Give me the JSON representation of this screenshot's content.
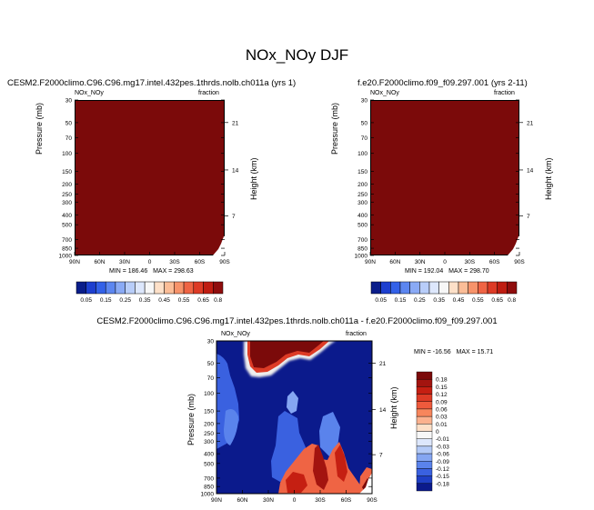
{
  "figure": {
    "title": "NOx_NOy DJF",
    "variable_label": "NOx_NOy",
    "units_label": "fraction",
    "ylabel_left": "Pressure (mb)",
    "ylabel_right": "Height (km)"
  },
  "colors": {
    "field_top": "#7b0a0a"
  },
  "chart_data": [
    {
      "type": "heatmap",
      "title": "CESM2.F2000climo.C96.C96.mg17.intel.432pes.1thrds.nolb.ch011a (yrs 1)",
      "variable": "NOx_NOy",
      "units": "fraction",
      "xlabel": "",
      "ylabel": "Pressure (mb)",
      "ylabel_right": "Height (km)",
      "x_ticks": [
        "90N",
        "60N",
        "30N",
        "0",
        "30S",
        "60S",
        "90S"
      ],
      "y_ticks": [
        "30",
        "50",
        "70",
        "100",
        "150",
        "200",
        "250",
        "300",
        "400",
        "500",
        "700",
        "850",
        "1000"
      ],
      "y_right_ticks": [
        "21",
        "14",
        "7"
      ],
      "min_label": "MIN = 186.46",
      "max_label": "MAX = 298.63",
      "min": 186.46,
      "max": 298.63,
      "colorbar_levels": [
        "0.05",
        "0.15",
        "0.25",
        "0.35",
        "0.45",
        "0.55",
        "0.65",
        "0.8"
      ],
      "colorbar_colors": [
        "#0a1d8a",
        "#1d3fcf",
        "#3361e8",
        "#5c86f0",
        "#8aaaf5",
        "#b8cdf9",
        "#dde7fc",
        "#f7f7f7",
        "#fde0c8",
        "#fbbd97",
        "#f7936a",
        "#ef6444",
        "#dd3b26",
        "#bf1d12",
        "#8f0d0d"
      ]
    },
    {
      "type": "heatmap",
      "title": "f.e20.F2000climo.f09_f09.297.001 (yrs 2-11)",
      "variable": "NOx_NOy",
      "units": "fraction",
      "xlabel": "",
      "ylabel": "Pressure (mb)",
      "ylabel_right": "Height (km)",
      "x_ticks": [
        "90N",
        "60N",
        "30N",
        "0",
        "30S",
        "60S",
        "90S"
      ],
      "y_ticks": [
        "30",
        "50",
        "70",
        "100",
        "150",
        "200",
        "250",
        "300",
        "400",
        "500",
        "700",
        "850",
        "1000"
      ],
      "y_right_ticks": [
        "21",
        "14",
        "7"
      ],
      "min_label": "MIN = 192.04",
      "max_label": "MAX = 298.70",
      "min": 192.04,
      "max": 298.7,
      "colorbar_levels": [
        "0.05",
        "0.15",
        "0.25",
        "0.35",
        "0.45",
        "0.55",
        "0.65",
        "0.8"
      ],
      "colorbar_colors": [
        "#0a1d8a",
        "#1d3fcf",
        "#3361e8",
        "#5c86f0",
        "#8aaaf5",
        "#b8cdf9",
        "#dde7fc",
        "#f7f7f7",
        "#fde0c8",
        "#fbbd97",
        "#f7936a",
        "#ef6444",
        "#dd3b26",
        "#bf1d12",
        "#8f0d0d"
      ]
    },
    {
      "type": "heatmap",
      "title": "CESM2.F2000climo.C96.C96.mg17.intel.432pes.1thrds.nolb.ch011a - f.e20.F2000climo.f09_f09.297.001",
      "variable": "NOx_NOy",
      "units": "fraction",
      "xlabel": "",
      "ylabel": "Pressure (mb)",
      "ylabel_right": "Height (km)",
      "x_ticks": [
        "90N",
        "60N",
        "30N",
        "0",
        "30S",
        "60S",
        "90S"
      ],
      "y_ticks": [
        "30",
        "50",
        "70",
        "100",
        "150",
        "200",
        "250",
        "300",
        "400",
        "500",
        "700",
        "850",
        "1000"
      ],
      "y_right_ticks": [
        "21",
        "14",
        "7"
      ],
      "min_label": "MIN = -16.56",
      "max_label": "MAX =  15.71",
      "min": -16.56,
      "max": 15.71,
      "colorbar_levels": [
        "0.18",
        "0.15",
        "0.12",
        "0.09",
        "0.06",
        "0.03",
        "0.01",
        "0",
        "-0.01",
        "-0.03",
        "-0.06",
        "-0.09",
        "-0.12",
        "-0.15",
        "-0.18"
      ],
      "colorbar_colors": [
        "#7b0a0a",
        "#a3140f",
        "#c51f12",
        "#dd3b26",
        "#ee5a3c",
        "#f7865c",
        "#fbb18e",
        "#fde0c8",
        "#f7f7f7",
        "#dde7fc",
        "#b4caf7",
        "#85a6f2",
        "#5a83ec",
        "#3a61e0",
        "#1f3fc5",
        "#0b1a8c"
      ]
    }
  ]
}
